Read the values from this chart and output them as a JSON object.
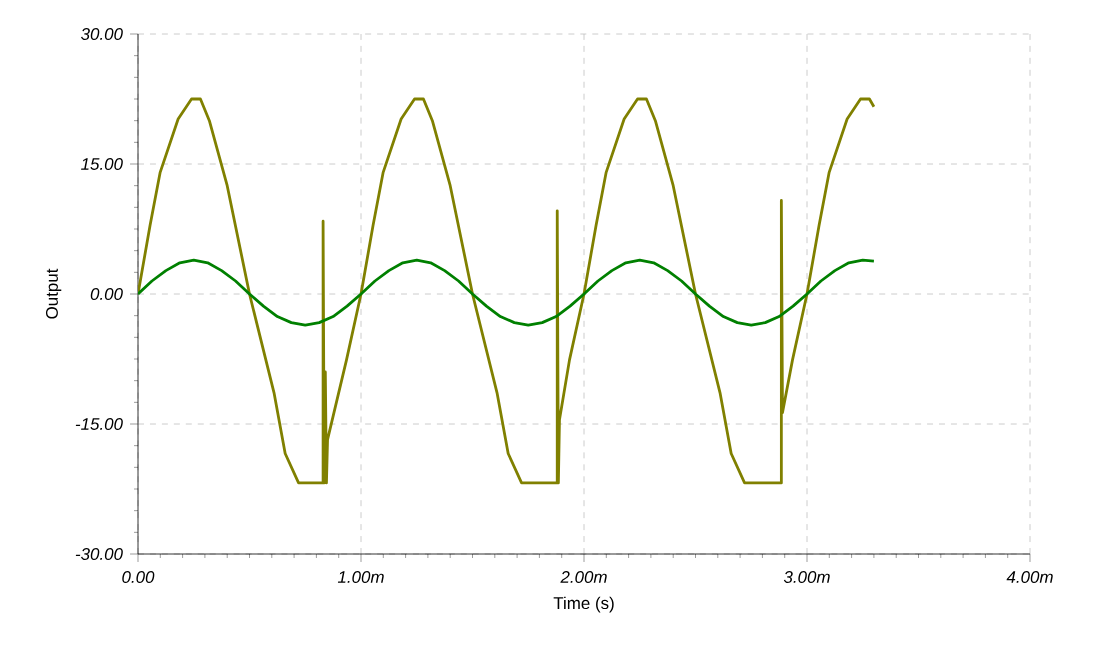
{
  "chart_data": {
    "type": "line",
    "xlabel": "Time (s)",
    "ylabel": "Output",
    "xlim": [
      0,
      4
    ],
    "ylim": [
      -30,
      30
    ],
    "xticks": [
      {
        "value": 0,
        "label": "0.00"
      },
      {
        "value": 1,
        "label": "1.00m"
      },
      {
        "value": 2,
        "label": "2.00m"
      },
      {
        "value": 3,
        "label": "3.00m"
      },
      {
        "value": 4,
        "label": "4.00m"
      }
    ],
    "yticks": [
      {
        "value": -30,
        "label": "-30.00"
      },
      {
        "value": -15,
        "label": "-15.00"
      },
      {
        "value": 0,
        "label": "0.00"
      },
      {
        "value": 15,
        "label": "15.00"
      },
      {
        "value": 30,
        "label": "30.00"
      }
    ],
    "grid": true,
    "marker": "none",
    "line_style": "solid",
    "series": [
      {
        "color": "#808000",
        "x": [
          0,
          0.054,
          0.099,
          0.18,
          0.24,
          0.28,
          0.32,
          0.4,
          0.5,
          0.61,
          0.66,
          0.72,
          0.83,
          0.83,
          0.835,
          0.84,
          0.845,
          0.85,
          0.935,
          1,
          1.054,
          1.099,
          1.18,
          1.24,
          1.28,
          1.32,
          1.4,
          1.5,
          1.61,
          1.66,
          1.72,
          1.88,
          1.88,
          1.885,
          1.89,
          1.935,
          2,
          2.054,
          2.099,
          2.18,
          2.24,
          2.28,
          2.32,
          2.4,
          2.5,
          2.61,
          2.66,
          2.72,
          2.885,
          2.885,
          2.89,
          2.935,
          3,
          3.054,
          3.099,
          3.18,
          3.24,
          3.28,
          3.3
        ],
        "values": [
          0,
          7.9,
          14.0,
          20.2,
          22.5,
          22.5,
          20.0,
          12.5,
          0,
          -11.4,
          -18.4,
          -21.8,
          -21.8,
          8.4,
          -21.8,
          -9.0,
          -21.8,
          -16.8,
          -7.6,
          0,
          7.9,
          14.0,
          20.2,
          22.5,
          22.5,
          20.0,
          12.5,
          0,
          -11.4,
          -18.4,
          -21.8,
          -21.8,
          9.6,
          -21.8,
          -14.5,
          -7.6,
          0,
          7.9,
          14.0,
          20.2,
          22.5,
          22.5,
          20.0,
          12.5,
          0,
          -11.4,
          -18.4,
          -21.8,
          -21.8,
          10.8,
          -13.7,
          -7.6,
          0,
          7.9,
          14.0,
          20.2,
          22.5,
          22.5,
          21.6
        ]
      },
      {
        "color": "#008000",
        "x": [
          0,
          0.0625,
          0.125,
          0.1875,
          0.25,
          0.3125,
          0.375,
          0.4375,
          0.5,
          0.5625,
          0.625,
          0.6875,
          0.75,
          0.8125,
          0.875,
          0.9375,
          1,
          1.0625,
          1.125,
          1.1875,
          1.25,
          1.3125,
          1.375,
          1.4375,
          1.5,
          1.5625,
          1.625,
          1.6875,
          1.75,
          1.8125,
          1.875,
          1.9375,
          2,
          2.0625,
          2.125,
          2.1875,
          2.25,
          2.3125,
          2.375,
          2.4375,
          2.5,
          2.5625,
          2.625,
          2.6875,
          2.75,
          2.8125,
          2.875,
          2.9375,
          3,
          3.0625,
          3.125,
          3.1875,
          3.25,
          3.3
        ],
        "values": [
          0,
          1.5,
          2.7,
          3.6,
          3.9,
          3.6,
          2.7,
          1.5,
          0,
          -1.4,
          -2.6,
          -3.3,
          -3.6,
          -3.3,
          -2.6,
          -1.4,
          0,
          1.5,
          2.7,
          3.6,
          3.9,
          3.6,
          2.7,
          1.5,
          0,
          -1.4,
          -2.6,
          -3.3,
          -3.6,
          -3.3,
          -2.6,
          -1.4,
          0,
          1.5,
          2.7,
          3.6,
          3.9,
          3.6,
          2.7,
          1.5,
          0,
          -1.4,
          -2.6,
          -3.3,
          -3.6,
          -3.3,
          -2.6,
          -1.4,
          0,
          1.5,
          2.7,
          3.6,
          3.9,
          3.8
        ]
      }
    ]
  }
}
